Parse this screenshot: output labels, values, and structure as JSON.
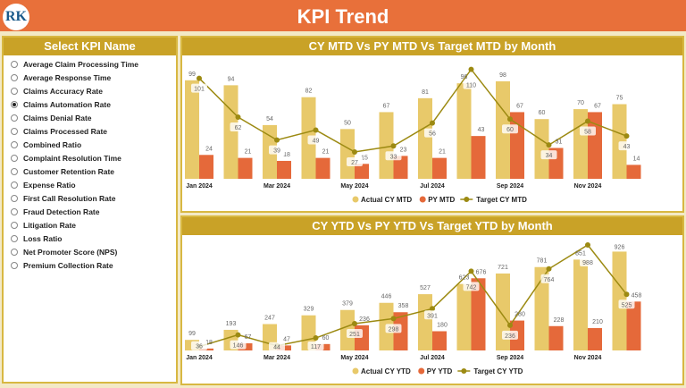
{
  "header": {
    "title": "KPI Trend",
    "logo_text": "RK"
  },
  "sidebar": {
    "title": "Select KPI Name",
    "selected": "Claims Automation Rate",
    "items": [
      "Average Claim Processing Time",
      "Average Response Time",
      "Claims Accuracy Rate",
      "Claims Automation Rate",
      "Claims Denial Rate",
      "Claims Processed Rate",
      "Combined Ratio",
      "Complaint Resolution Time",
      "Customer Retention Rate",
      "Expense Ratio",
      "First Call Resolution Rate",
      "Fraud Detection Rate",
      "Litigation Rate",
      "Loss Ratio",
      "Net Promoter Score (NPS)",
      "Premium Collection Rate"
    ]
  },
  "colors": {
    "actual": "#e8c96a",
    "py": "#e5693a",
    "target": "#9c8a12",
    "header": "#e8703a",
    "panel_title": "#c9a227"
  },
  "chart_data": [
    {
      "type": "bar",
      "title": "CY MTD Vs PY MTD Vs Target MTD by Month",
      "categories": [
        "Jan 2024",
        "Feb 2024",
        "Mar 2024",
        "Apr 2024",
        "May 2024",
        "Jun 2024",
        "Jul 2024",
        "Aug 2024",
        "Sep 2024",
        "Oct 2024",
        "Nov 2024",
        "Dec 2024"
      ],
      "tick_labels": [
        "Jan 2024",
        "",
        "Mar 2024",
        "",
        "May 2024",
        "",
        "Jul 2024",
        "",
        "Sep 2024",
        "",
        "Nov 2024",
        ""
      ],
      "series": [
        {
          "name": "Actual CY MTD",
          "kind": "bar",
          "values": [
            99,
            94,
            54,
            82,
            50,
            67,
            81,
            96,
            98,
            60,
            70,
            75
          ]
        },
        {
          "name": "PY MTD",
          "kind": "bar",
          "values": [
            24,
            21,
            18,
            21,
            15,
            23,
            21,
            43,
            67,
            31,
            67,
            14
          ]
        },
        {
          "name": "Target CY MTD",
          "kind": "line",
          "values": [
            101,
            62,
            39,
            49,
            27,
            33,
            56,
            110,
            60,
            34,
            58,
            43
          ]
        }
      ],
      "ylim": [
        0,
        115
      ],
      "legend": "bottom-center",
      "grid": false
    },
    {
      "type": "bar",
      "title": "CY YTD Vs PY YTD Vs Target YTD by Month",
      "categories": [
        "Jan 2024",
        "Feb 2024",
        "Mar 2024",
        "Apr 2024",
        "May 2024",
        "Jun 2024",
        "Jul 2024",
        "Aug 2024",
        "Sep 2024",
        "Oct 2024",
        "Nov 2024",
        "Dec 2024"
      ],
      "tick_labels": [
        "Jan 2024",
        "",
        "Mar 2024",
        "",
        "May 2024",
        "",
        "Jul 2024",
        "",
        "Sep 2024",
        "",
        "Nov 2024",
        ""
      ],
      "series": [
        {
          "name": "Actual CY YTD",
          "kind": "bar",
          "values": [
            99,
            193,
            247,
            329,
            379,
            446,
            527,
            623,
            721,
            781,
            851,
            926
          ]
        },
        {
          "name": "PY YTD",
          "kind": "bar",
          "values": [
            18,
            67,
            47,
            60,
            236,
            358,
            180,
            676,
            280,
            228,
            210,
            458
          ]
        },
        {
          "name": "Target CY YTD",
          "kind": "line",
          "values": [
            36,
            146,
            44,
            117,
            251,
            298,
            391,
            742,
            236,
            764,
            988,
            525
          ]
        }
      ],
      "ylim": [
        0,
        1030
      ],
      "legend": "bottom-center",
      "grid": false
    }
  ]
}
